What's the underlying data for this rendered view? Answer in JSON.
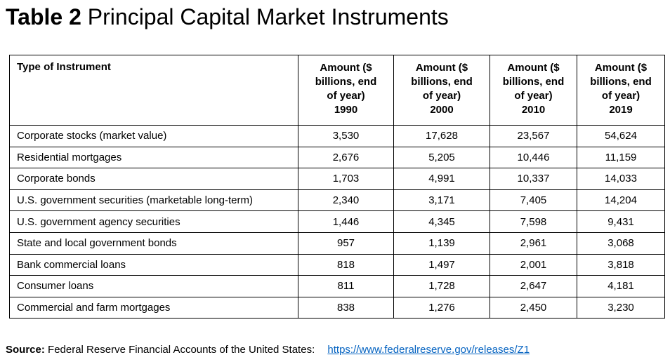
{
  "title": {
    "prefix": "Table 2",
    "text": "Principal Capital Market Instruments"
  },
  "table": {
    "type_header": "Type of Instrument",
    "amount_header_line1": "Amount ($",
    "amount_header_line2": "billions, end",
    "amount_header_line3": "of year)",
    "years": [
      "1990",
      "2000",
      "2010",
      "2019"
    ],
    "rows": [
      {
        "type": "Corporate stocks (market value)",
        "values": [
          "3,530",
          "17,628",
          "23,567",
          "54,624"
        ]
      },
      {
        "type": "Residential mortgages",
        "values": [
          "2,676",
          "5,205",
          "10,446",
          "11,159"
        ]
      },
      {
        "type": "Corporate bonds",
        "values": [
          "1,703",
          "4,991",
          "10,337",
          "14,033"
        ]
      },
      {
        "type": "U.S. government securities (marketable long-term)",
        "values": [
          "2,340",
          "3,171",
          "7,405",
          "14,204"
        ]
      },
      {
        "type": "U.S. government agency securities",
        "values": [
          "1,446",
          "4,345",
          "7,598",
          "9,431"
        ]
      },
      {
        "type": "State and local government bonds",
        "values": [
          "957",
          "1,139",
          "2,961",
          "3,068"
        ]
      },
      {
        "type": "Bank commercial loans",
        "values": [
          "818",
          "1,497",
          "2,001",
          "3,818"
        ]
      },
      {
        "type": "Consumer loans",
        "values": [
          "811",
          "1,728",
          "2,647",
          "4,181"
        ]
      },
      {
        "type": "Commercial and farm mortgages",
        "values": [
          "838",
          "1,276",
          "2,450",
          "3,230"
        ]
      }
    ]
  },
  "source": {
    "label": "Source:",
    "text": "Federal Reserve Financial Accounts of the United States:",
    "link": "https://www.federalreserve.gov/releases/Z1"
  }
}
